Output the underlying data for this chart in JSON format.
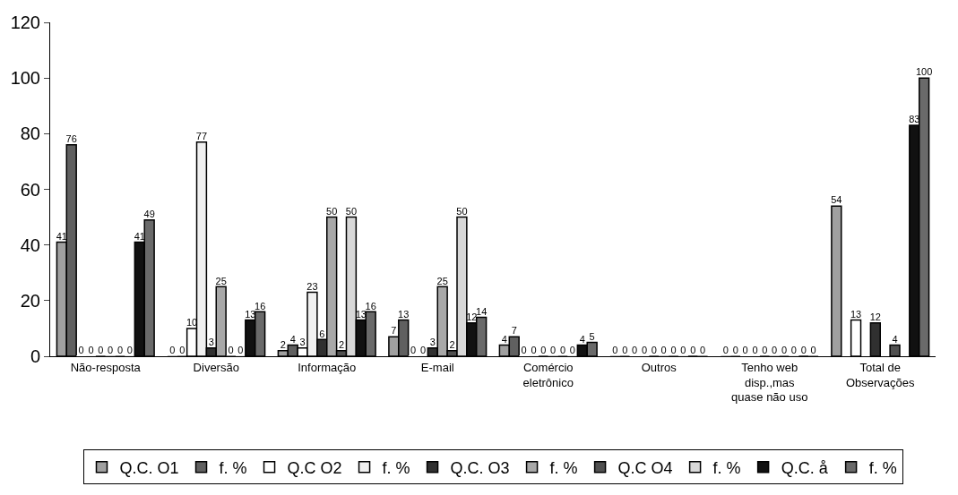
{
  "chart_data": {
    "type": "bar",
    "categories": [
      "Não-resposta",
      "Diversão",
      "Informação",
      "E-mail",
      "Comércio\neletrônico",
      "Outros",
      "Tenho web\ndisp.,mas\nquase não uso",
      "Total de\nObservações"
    ],
    "series": [
      {
        "name": "Q.C. O1",
        "color": "#a0a0a0",
        "values": [
          41,
          0,
          2,
          7,
          4,
          0,
          0,
          54
        ]
      },
      {
        "name": "f. %",
        "color": "#606060",
        "values": [
          76,
          0,
          4,
          13,
          7,
          0,
          0,
          null
        ]
      },
      {
        "name": "Q.C O2",
        "color": "#ffffff",
        "values": [
          0,
          10,
          3,
          0,
          0,
          0,
          0,
          13
        ]
      },
      {
        "name": "f. %",
        "color": "#f0f0f0",
        "values": [
          0,
          77,
          23,
          0,
          0,
          0,
          0,
          null
        ]
      },
      {
        "name": "Q.C. O3",
        "color": "#303030",
        "values": [
          0,
          3,
          6,
          3,
          0,
          0,
          0,
          12
        ]
      },
      {
        "name": "f. %",
        "color": "#a8a8a8",
        "values": [
          0,
          25,
          50,
          25,
          0,
          0,
          0,
          null
        ]
      },
      {
        "name": "Q.C O4",
        "color": "#505050",
        "values": [
          0,
          0,
          2,
          2,
          0,
          0,
          0,
          4
        ]
      },
      {
        "name": "f. %",
        "color": "#d8d8d8",
        "values": [
          0,
          0,
          50,
          50,
          0,
          0,
          0,
          null
        ]
      },
      {
        "name": "Q.C. å",
        "color": "#111111",
        "values": [
          41,
          13,
          13,
          12,
          4,
          0,
          0,
          83
        ]
      },
      {
        "name": "f. %",
        "color": "#6a6a6a",
        "values": [
          49,
          16,
          16,
          14,
          5,
          0,
          0,
          100
        ]
      }
    ],
    "ylim": [
      0,
      120
    ],
    "yticks": [
      0,
      20,
      40,
      60,
      80,
      100,
      120
    ],
    "data_labels": true,
    "legend": "bottom"
  }
}
